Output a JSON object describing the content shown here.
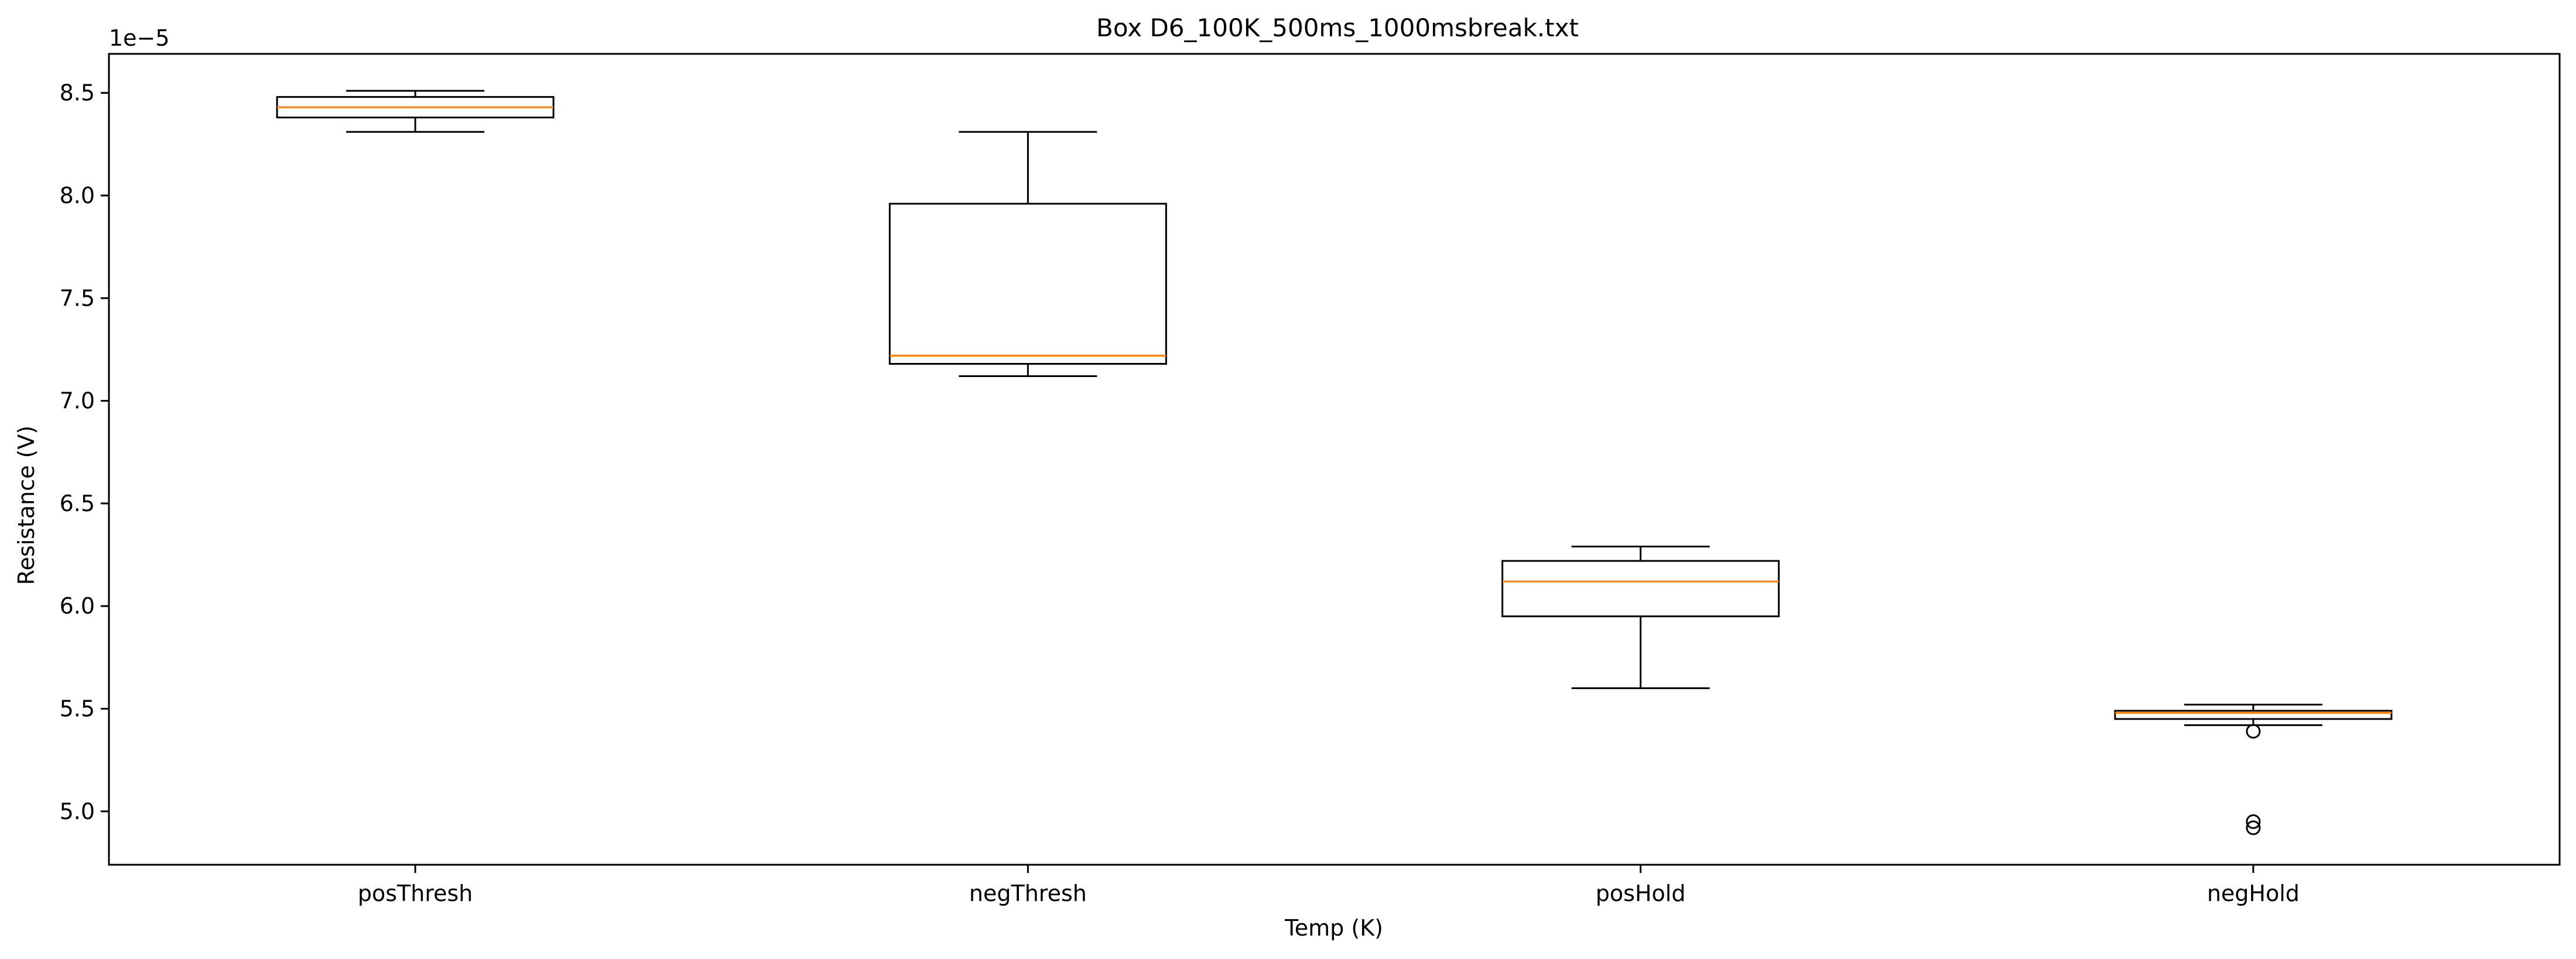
{
  "chart_data": {
    "type": "box",
    "title": "Box D6_100K_500ms_1000msbreak.txt",
    "xlabel": "Temp (K)",
    "ylabel": "Resistance (V)",
    "y_offset_text": "1e−5",
    "y_scale": 1e-05,
    "ylim": [
      4.74,
      8.69
    ],
    "yticks": [
      5.0,
      5.5,
      6.0,
      6.5,
      7.0,
      7.5,
      8.0,
      8.5
    ],
    "ytick_labels": [
      "5.0",
      "5.5",
      "6.0",
      "6.5",
      "7.0",
      "7.5",
      "8.0",
      "8.5"
    ],
    "categories": [
      "posThresh",
      "negThresh",
      "posHold",
      "negHold"
    ],
    "boxes": [
      {
        "name": "posThresh",
        "whislo": 8.31,
        "q1": 8.38,
        "med": 8.43,
        "q3": 8.48,
        "whishi": 8.51,
        "fliers": []
      },
      {
        "name": "negThresh",
        "whislo": 7.12,
        "q1": 7.18,
        "med": 7.22,
        "q3": 7.96,
        "whishi": 8.31,
        "fliers": []
      },
      {
        "name": "posHold",
        "whislo": 5.6,
        "q1": 5.95,
        "med": 6.12,
        "q3": 6.22,
        "whishi": 6.29,
        "fliers": []
      },
      {
        "name": "negHold",
        "whislo": 5.42,
        "q1": 5.45,
        "med": 5.48,
        "q3": 5.49,
        "whishi": 5.52,
        "fliers": [
          5.39,
          4.95,
          4.92
        ]
      }
    ],
    "grid": false,
    "colors": {
      "box": "#000000",
      "median": "#ff7f0e",
      "flier": "#000000"
    }
  }
}
